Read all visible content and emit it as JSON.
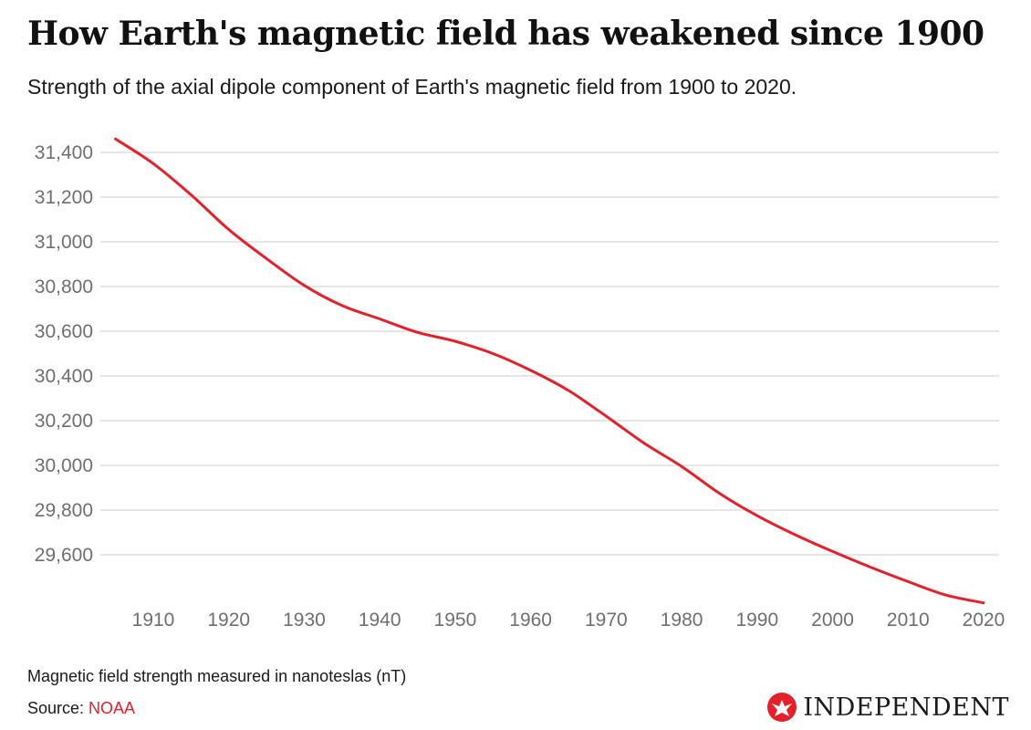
{
  "header": {
    "title": "How Earth's magnetic field has weakened since 1900",
    "subtitle": "Strength of the axial dipole component of Earth's magnetic field from 1900 to 2020."
  },
  "footer": {
    "note": "Magnetic field strength measured in nanoteslas (nT)",
    "source_label": "Source: ",
    "source_name": "NOAA",
    "brand": "INDEPENDENT",
    "brand_icon": "eagle-icon"
  },
  "colors": {
    "line": "#e4212b",
    "grid": "#d6d6d6",
    "source_accent": "#e4212b",
    "tick_text": "#6f6f6f"
  },
  "chart_data": {
    "type": "line",
    "title": "How Earth's magnetic field has weakened since 1900",
    "subtitle": "Strength of the axial dipole component of Earth's magnetic field from 1900 to 2020.",
    "xlabel": "",
    "ylabel": "",
    "xlim": [
      1905,
      2020
    ],
    "ylim": [
      29400,
      31500
    ],
    "x_ticks": [
      1910,
      1920,
      1930,
      1940,
      1950,
      1960,
      1970,
      1980,
      1990,
      2000,
      2010,
      2020
    ],
    "y_ticks": [
      29600,
      29800,
      30000,
      30200,
      30400,
      30600,
      30800,
      31000,
      31200,
      31400
    ],
    "y_tick_labels": [
      "29,600",
      "29,800",
      "30,000",
      "30,200",
      "30,400",
      "30,600",
      "30,800",
      "31,000",
      "31,200",
      "31,400"
    ],
    "grid": "horizontal",
    "legend": "none",
    "x": [
      1905,
      1910,
      1915,
      1920,
      1925,
      1930,
      1935,
      1940,
      1945,
      1950,
      1955,
      1960,
      1965,
      1970,
      1975,
      1980,
      1985,
      1990,
      1995,
      2000,
      2005,
      2010,
      2015,
      2020
    ],
    "y": [
      31460,
      31350,
      31210,
      31055,
      30925,
      30805,
      30715,
      30655,
      30595,
      30555,
      30500,
      30425,
      30335,
      30220,
      30100,
      29995,
      29875,
      29775,
      29690,
      29615,
      29545,
      29480,
      29420,
      29385
    ]
  }
}
